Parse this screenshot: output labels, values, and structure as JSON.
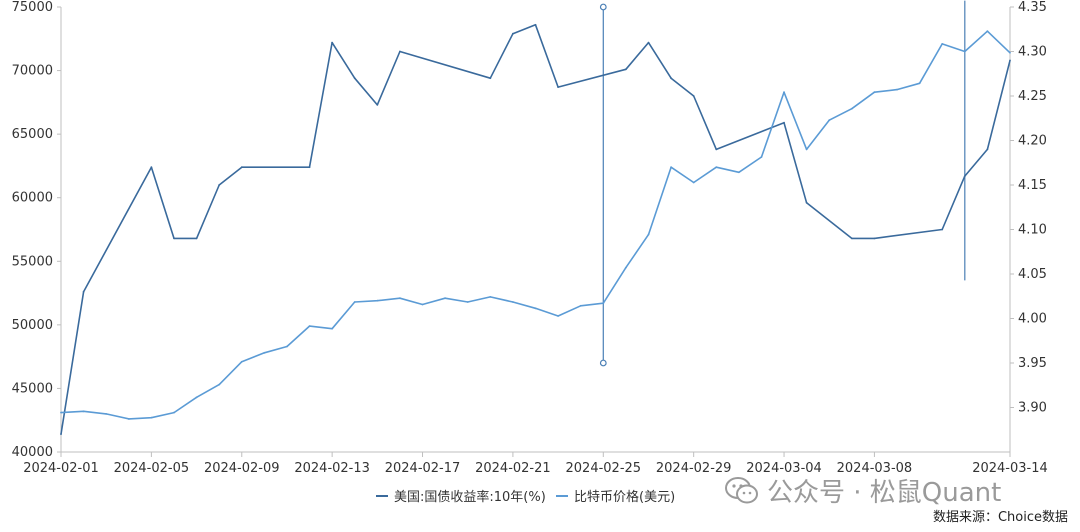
{
  "chart_data": {
    "type": "line",
    "x_ticks": [
      "2024-02-01",
      "2024-02-05",
      "2024-02-09",
      "2024-02-13",
      "2024-02-17",
      "2024-02-21",
      "2024-02-25",
      "2024-02-29",
      "2024-03-04",
      "2024-03-08",
      "2024-03-14"
    ],
    "y_left": {
      "ticks": [
        40000,
        45000,
        50000,
        55000,
        60000,
        65000,
        70000,
        75000
      ],
      "range": [
        40000,
        75000
      ]
    },
    "y_right": {
      "ticks": [
        "3.90",
        "3.95",
        "4.00",
        "4.05",
        "4.10",
        "4.15",
        "4.20",
        "4.25",
        "4.30",
        "4.35"
      ],
      "range": [
        3.85,
        4.35
      ]
    },
    "series": [
      {
        "name": "美国:国债收益率:10年(%)",
        "axis": "right",
        "color": "#3a6a9c",
        "x": [
          "2024-02-01",
          "2024-02-02",
          "2024-02-05",
          "2024-02-06",
          "2024-02-07",
          "2024-02-08",
          "2024-02-09",
          "2024-02-12",
          "2024-02-13",
          "2024-02-14",
          "2024-02-15",
          "2024-02-16",
          "2024-02-20",
          "2024-02-21",
          "2024-02-22",
          "2024-02-23",
          "2024-02-26",
          "2024-02-27",
          "2024-02-28",
          "2024-02-29",
          "2024-03-01",
          "2024-03-04",
          "2024-03-05",
          "2024-03-07",
          "2024-03-08",
          "2024-03-11",
          "2024-03-12",
          "2024-03-13",
          "2024-03-14"
        ],
        "y": [
          3.87,
          4.03,
          4.17,
          4.09,
          4.09,
          4.15,
          4.17,
          4.17,
          4.31,
          4.27,
          4.24,
          4.3,
          4.27,
          4.32,
          4.33,
          4.26,
          4.28,
          4.31,
          4.27,
          4.25,
          4.19,
          4.22,
          4.13,
          4.09,
          4.09,
          4.1,
          4.16,
          4.19,
          4.29
        ]
      },
      {
        "name": "比特币价格(美元)",
        "axis": "left",
        "color": "#5b9bd5",
        "x": [
          "2024-02-01",
          "2024-02-02",
          "2024-02-03",
          "2024-02-04",
          "2024-02-05",
          "2024-02-06",
          "2024-02-07",
          "2024-02-08",
          "2024-02-09",
          "2024-02-10",
          "2024-02-11",
          "2024-02-12",
          "2024-02-13",
          "2024-02-14",
          "2024-02-15",
          "2024-02-16",
          "2024-02-17",
          "2024-02-18",
          "2024-02-19",
          "2024-02-20",
          "2024-02-21",
          "2024-02-22",
          "2024-02-23",
          "2024-02-24",
          "2024-02-25",
          "2024-02-26",
          "2024-02-27",
          "2024-02-28",
          "2024-02-29",
          "2024-03-01",
          "2024-03-02",
          "2024-03-03",
          "2024-03-04",
          "2024-03-05",
          "2024-03-06",
          "2024-03-07",
          "2024-03-08",
          "2024-03-09",
          "2024-03-10",
          "2024-03-11",
          "2024-03-12",
          "2024-03-13",
          "2024-03-14"
        ],
        "y": [
          43100,
          43200,
          43000,
          42600,
          42700,
          43100,
          44300,
          45300,
          47100,
          47800,
          48300,
          49900,
          49700,
          51800,
          51900,
          52100,
          51600,
          52100,
          51800,
          52200,
          51800,
          51300,
          50700,
          51500,
          51700,
          54500,
          57100,
          62400,
          61200,
          62400,
          62000,
          63200,
          68300,
          63800,
          66100,
          67000,
          68300,
          68500,
          69000,
          72100,
          71500,
          73100,
          71400
        ]
      }
    ],
    "legend": {
      "placement": "bottom"
    },
    "annotations": [
      {
        "type": "vertical-line",
        "x": "2024-02-25",
        "axis": "left",
        "y_top": 75000,
        "y_bottom": 47000,
        "markers": true
      },
      {
        "type": "vertical-line",
        "x": "2024-03-12",
        "axis": "left",
        "y_top": 75500,
        "y_bottom": 53500,
        "markers": false
      }
    ],
    "grid": false
  },
  "watermark": {
    "text": "公众号 · 松鼠Quant",
    "icon": "wechat-icon"
  },
  "source": "数据来源：Choice数据"
}
